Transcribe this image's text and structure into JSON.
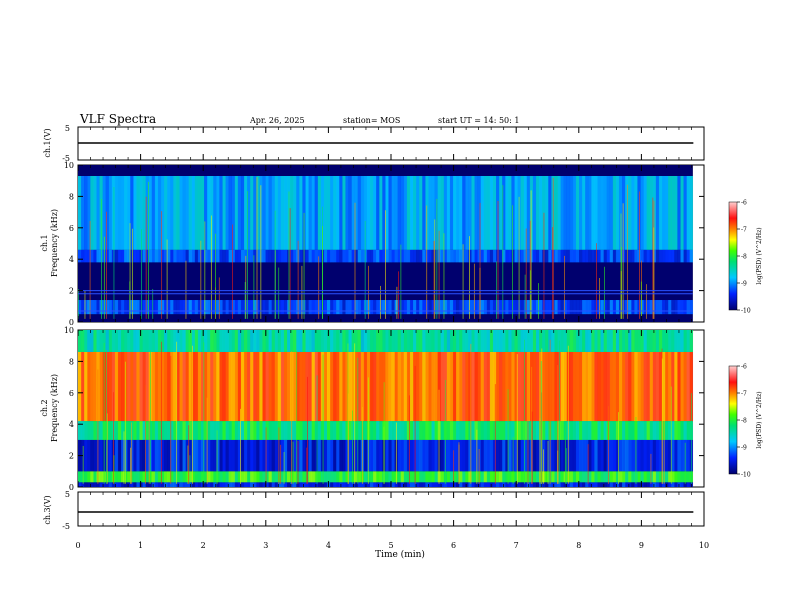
{
  "header": {
    "title": "VLF Spectra",
    "date": "Apr. 26, 2025",
    "station": "station= MOS",
    "start": "start  UT  =   14: 50: 1"
  },
  "chart_data": [
    {
      "type": "line",
      "name": "ch.1 waveform",
      "ylabel": "ch.1(V)",
      "ylim": [
        -5,
        5
      ],
      "yticks": [
        "5",
        "-5"
      ],
      "xlim": [
        0,
        10
      ],
      "series": [
        {
          "x": [
            0,
            9.83
          ],
          "y": [
            0,
            0
          ]
        }
      ]
    },
    {
      "type": "heatmap",
      "ylabel": "ch.1\nFrequency (kHz)",
      "ylim": [
        0,
        10
      ],
      "yticks": [
        "0",
        "2",
        "4",
        "6",
        "8",
        "10"
      ],
      "xlim": [
        0,
        10
      ],
      "colorbar": {
        "label": "log(PSD) (V^2/Hz)",
        "range": [
          -10,
          -6
        ],
        "ticks": [
          "-6",
          "-7",
          "-8",
          "-9",
          "-10"
        ]
      },
      "bands": [
        {
          "f_from": 0,
          "f_to": 0.5,
          "log_psd": -10
        },
        {
          "f_from": 0.5,
          "f_to": 1.4,
          "log_psd": -9.3
        },
        {
          "f_from": 1.4,
          "f_to": 3.8,
          "log_psd": -10
        },
        {
          "f_from": 3.8,
          "f_to": 4.6,
          "log_psd": -9.3
        },
        {
          "f_from": 4.6,
          "f_to": 9.3,
          "log_psd": -8.9
        },
        {
          "f_from": 9.3,
          "f_to": 10,
          "log_psd": -10
        }
      ],
      "lines_khz": [
        0.7,
        1.8,
        2.0
      ]
    },
    {
      "type": "heatmap",
      "ylabel": "ch.2\nFrequency (kHz)",
      "ylim": [
        0,
        10
      ],
      "yticks": [
        "0",
        "2",
        "4",
        "6",
        "8",
        "10"
      ],
      "xlim": [
        0,
        10
      ],
      "colorbar": {
        "label": "log(PSD) (V^2/Hz)",
        "range": [
          -10,
          -6
        ],
        "ticks": [
          "-6",
          "-7",
          "-8",
          "-9",
          "-10"
        ]
      },
      "bands": [
        {
          "f_from": 0,
          "f_to": 0.3,
          "log_psd": -9.5
        },
        {
          "f_from": 0.3,
          "f_to": 1.0,
          "log_psd": -8.0
        },
        {
          "f_from": 1.0,
          "f_to": 3.0,
          "log_psd": -9.5
        },
        {
          "f_from": 3.0,
          "f_to": 4.2,
          "log_psd": -8.2
        },
        {
          "f_from": 4.2,
          "f_to": 8.6,
          "log_psd": -6.9
        },
        {
          "f_from": 8.6,
          "f_to": 10,
          "log_psd": -8.4
        }
      ]
    },
    {
      "type": "line",
      "name": "ch.3 waveform",
      "ylabel": "ch.3(V)",
      "ylim": [
        -5,
        5
      ],
      "yticks": [
        "5",
        "-5"
      ],
      "xlim": [
        0,
        10
      ],
      "xlabel": "Time  (min)",
      "xticks": [
        "0",
        "1",
        "2",
        "3",
        "4",
        "5",
        "6",
        "7",
        "8",
        "9",
        "10"
      ],
      "series": [
        {
          "x": [
            0,
            9.83
          ],
          "y": [
            0,
            0
          ]
        }
      ]
    }
  ],
  "colors": {
    "background": "#000000",
    "navy": "#00006e",
    "blue": "#1a3cff",
    "cyan": "#20c8d8",
    "green": "#28e028",
    "yellow": "#f0f000",
    "red": "#ee2020",
    "pink": "#f5b4b4"
  }
}
